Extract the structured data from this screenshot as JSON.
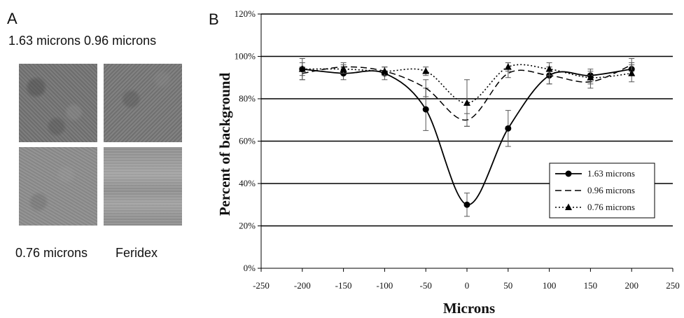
{
  "panel_a": {
    "letter": "A",
    "top_caption": "1.63 microns 0.96 microns",
    "bottom_caption_left": "0.76 microns",
    "bottom_caption_right": "Feridex"
  },
  "panel_b": {
    "letter": "B"
  },
  "chart_data": {
    "type": "line",
    "title": "",
    "xlabel": "Microns",
    "ylabel": "Percent of background",
    "xlim": [
      -250,
      250
    ],
    "ylim": [
      0,
      120
    ],
    "x_ticks": [
      -250,
      -200,
      -150,
      -100,
      -50,
      0,
      50,
      100,
      150,
      200,
      250
    ],
    "x_tick_labels": [
      "-250",
      "-200",
      "-150",
      "-100",
      "-50",
      "0",
      "50",
      "100",
      "150",
      "200",
      "250"
    ],
    "y_ticks": [
      0,
      20,
      40,
      60,
      80,
      100,
      120
    ],
    "y_tick_labels": [
      "0%",
      "20%",
      "40%",
      "60%",
      "80%",
      "100%",
      "120%"
    ],
    "grid": "horizontal",
    "legend_position": "right",
    "x": [
      -200,
      -150,
      -100,
      -50,
      0,
      50,
      100,
      150,
      200
    ],
    "series": [
      {
        "name": "1.63 microns",
        "style": "solid",
        "marker": "circle",
        "values": [
          94,
          92,
          92,
          75,
          30,
          66,
          91,
          91,
          94
        ],
        "error": [
          3,
          3,
          3,
          10,
          5.5,
          8.5,
          4,
          3,
          3
        ]
      },
      {
        "name": "0.96 microns",
        "style": "dashed",
        "marker": "none",
        "values": [
          92,
          95,
          93,
          85,
          70,
          92,
          91,
          88,
          96
        ],
        "error": [
          3,
          2,
          2,
          4,
          3,
          2,
          4,
          3,
          3
        ]
      },
      {
        "name": "0.76 microns",
        "style": "dotted",
        "marker": "triangle",
        "values": [
          94,
          94,
          93,
          93,
          78,
          95,
          94,
          90,
          92
        ],
        "error": [
          5,
          2,
          2,
          2,
          11,
          2,
          3,
          3,
          4
        ]
      }
    ]
  }
}
